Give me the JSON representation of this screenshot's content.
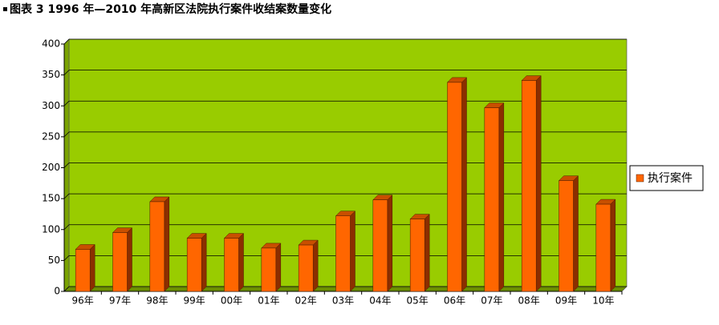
{
  "chart_data": {
    "type": "bar",
    "title": "图表 3 1996 年—2010 年高新区法院执行案件收结案数量变化",
    "categories": [
      "96年",
      "97年",
      "98年",
      "99年",
      "00年",
      "01年",
      "02年",
      "03年",
      "04年",
      "05年",
      "06年",
      "07年",
      "08年",
      "09年",
      "10年"
    ],
    "series": [
      {
        "name": "执行案件",
        "color": "#ff6600",
        "values": [
          68,
          95,
          145,
          86,
          86,
          70,
          75,
          122,
          148,
          117,
          338,
          297,
          341,
          179,
          141
        ]
      }
    ],
    "ylim": [
      0,
      400
    ],
    "yticks": [
      0,
      50,
      100,
      150,
      200,
      250,
      300,
      350,
      400
    ],
    "grid": true,
    "background": "#99cc00",
    "legend": "right"
  }
}
